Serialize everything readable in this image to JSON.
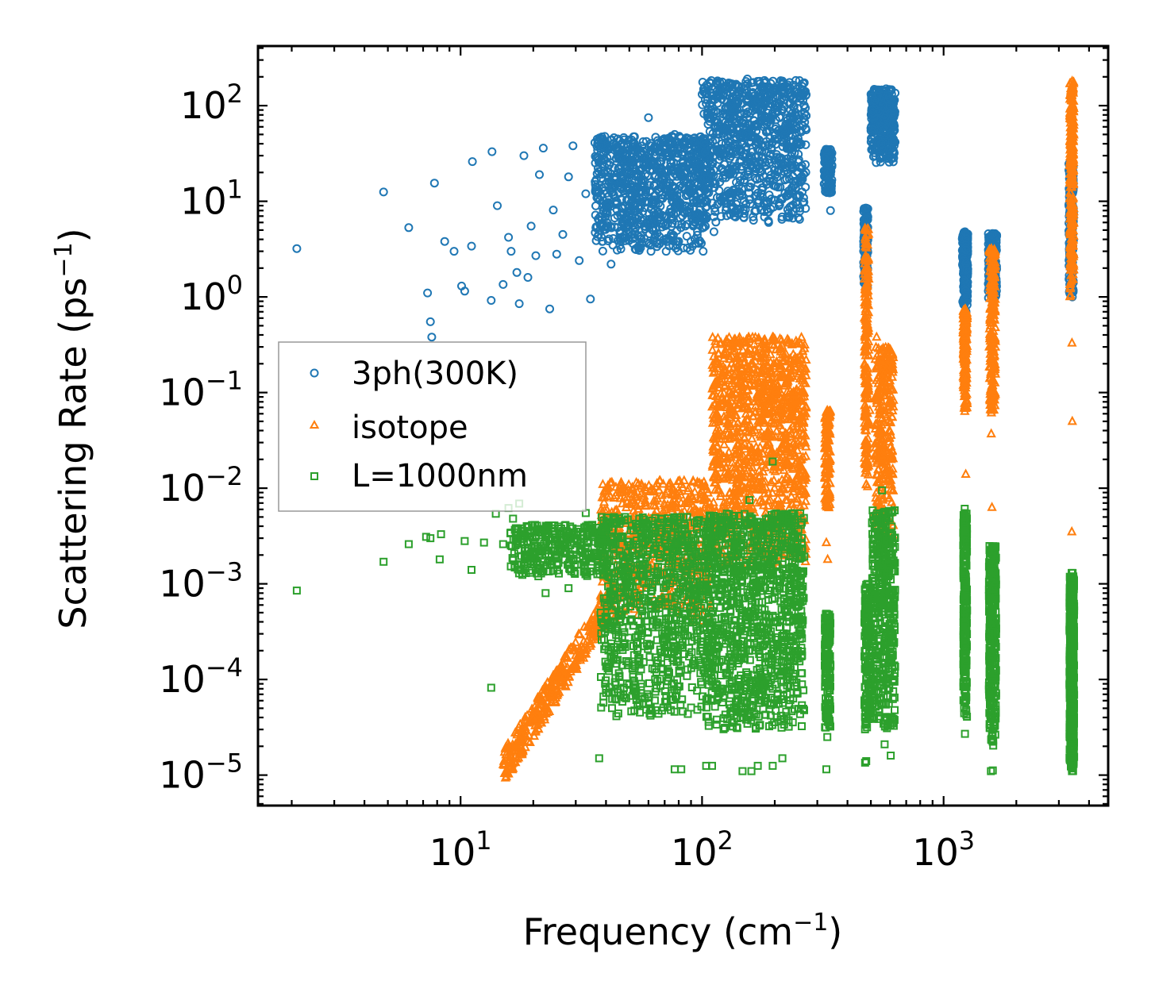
{
  "chart_data": {
    "type": "scatter",
    "xscale": "log",
    "yscale": "log",
    "xlabel": "Frequency (cm",
    "xlabel_exp": "−1",
    "xlabel_close": ")",
    "ylabel": "Scattering Rate (ps",
    "ylabel_exp": "−1",
    "ylabel_close": ")",
    "xlim": [
      1.45,
      4800
    ],
    "ylim": [
      4.8e-06,
      420
    ],
    "xticks": [
      {
        "value": 10,
        "base": "10",
        "exp": "1"
      },
      {
        "value": 100,
        "base": "10",
        "exp": "2"
      },
      {
        "value": 1000,
        "base": "10",
        "exp": "3"
      }
    ],
    "yticks": [
      {
        "value": 1e-05,
        "base": "10",
        "exp": "−5"
      },
      {
        "value": 0.0001,
        "base": "10",
        "exp": "−4"
      },
      {
        "value": 0.001,
        "base": "10",
        "exp": "−3"
      },
      {
        "value": 0.01,
        "base": "10",
        "exp": "−2"
      },
      {
        "value": 0.1,
        "base": "10",
        "exp": "−1"
      },
      {
        "value": 1,
        "base": "10",
        "exp": "0"
      },
      {
        "value": 10,
        "base": "10",
        "exp": "1"
      },
      {
        "value": 100,
        "base": "10",
        "exp": "2"
      }
    ],
    "legend_position": "center-left",
    "series": [
      {
        "name": "3ph(300K)",
        "marker": "circle",
        "color": "#1f77b4",
        "points": [
          [
            2.1,
            3.2
          ],
          [
            4.8,
            12.5
          ],
          [
            6.1,
            5.3
          ],
          [
            7.3,
            1.1
          ],
          [
            7.5,
            0.55
          ],
          [
            7.6,
            0.38
          ],
          [
            7.8,
            15.5
          ],
          [
            8.6,
            3.8
          ],
          [
            9.4,
            3.0
          ],
          [
            10.1,
            1.3
          ],
          [
            10.4,
            1.15
          ],
          [
            11.1,
            3.4
          ],
          [
            11.2,
            26
          ],
          [
            13.4,
            0.92
          ],
          [
            13.5,
            33
          ],
          [
            14.2,
            9.0
          ],
          [
            15.0,
            1.35
          ],
          [
            15.8,
            4.2
          ],
          [
            16.2,
            3.0
          ],
          [
            17.1,
            1.8
          ],
          [
            17.5,
            0.85
          ],
          [
            18.3,
            30
          ],
          [
            19.0,
            1.6
          ],
          [
            19.6,
            5.5
          ],
          [
            20.5,
            2.7
          ],
          [
            21.2,
            19
          ],
          [
            22.0,
            36
          ],
          [
            23.4,
            0.75
          ],
          [
            24.2,
            8.1
          ],
          [
            25.0,
            2.8
          ],
          [
            26.5,
            4.5
          ],
          [
            28.0,
            18
          ],
          [
            29.2,
            38
          ],
          [
            31.0,
            2.4
          ],
          [
            33.0,
            12
          ],
          [
            34.5,
            0.95
          ],
          [
            36.0,
            41
          ],
          [
            39.0,
            8.0
          ],
          [
            42.0,
            2.2
          ],
          [
            45.0,
            22
          ],
          [
            52.0,
            5.0
          ],
          [
            57.0,
            42
          ],
          [
            60.0,
            75
          ],
          [
            66.0,
            9.5
          ],
          [
            71.0,
            3.0
          ],
          [
            77.0,
            50
          ],
          [
            84.0,
            16
          ],
          [
            92.0,
            5.5
          ],
          [
            101.0,
            3.0
          ],
          [
            104.0,
            105
          ],
          [
            112.0,
            4.8
          ],
          [
            121.0,
            40
          ],
          [
            133.0,
            12
          ],
          [
            142.0,
            130
          ],
          [
            154.0,
            190
          ],
          [
            168.0,
            22
          ],
          [
            181.0,
            7.8
          ],
          [
            197.0,
            150
          ],
          [
            214.0,
            120
          ],
          [
            236.0,
            13
          ],
          [
            255.0,
            55
          ],
          [
            331.0,
            20
          ],
          [
            340.0,
            8.0
          ],
          [
            553.0,
            40
          ],
          [
            578.0,
            150
          ],
          [
            590.0,
            28
          ],
          [
            476.0,
            8.5
          ],
          [
            475.0,
            1.2
          ],
          [
            1226.0,
            4.8
          ],
          [
            1239.0,
            0.7
          ],
          [
            1593.0,
            4.6
          ],
          [
            3397.0,
            90
          ],
          [
            3412.0,
            1.0
          ]
        ],
        "bands": [
          {
            "xmin": 36,
            "xmax": 105,
            "ymin": 3,
            "ymax": 48,
            "count": 900
          },
          {
            "xmin": 100,
            "xmax": 270,
            "ymin": 6,
            "ymax": 185,
            "count": 900
          },
          {
            "xmin": 320,
            "xmax": 345,
            "ymin": 12,
            "ymax": 35,
            "count": 120
          },
          {
            "xmin": 500,
            "xmax": 630,
            "ymin": 25,
            "ymax": 150,
            "count": 300
          },
          {
            "xmin": 466,
            "xmax": 486,
            "ymin": 1.2,
            "ymax": 8.5,
            "count": 120
          },
          {
            "xmin": 1195,
            "xmax": 1260,
            "ymin": 0.8,
            "ymax": 4.8,
            "count": 200
          },
          {
            "xmin": 1530,
            "xmax": 1660,
            "ymin": 0.9,
            "ymax": 4.6,
            "count": 200
          },
          {
            "xmin": 3300,
            "xmax": 3450,
            "ymin": 1.0,
            "ymax": 25,
            "count": 200
          }
        ]
      },
      {
        "name": "isotope",
        "marker": "triangle",
        "color": "#ff7f0e",
        "points": [
          [
            15.2,
            1.3e-05
          ],
          [
            16.0,
            1.6e-05
          ],
          [
            17.5,
            2.4e-05
          ],
          [
            19.0,
            3.5e-05
          ],
          [
            21.0,
            5e-05
          ],
          [
            24.0,
            7.5e-05
          ],
          [
            27.0,
            0.00011
          ],
          [
            31.0,
            0.00017
          ],
          [
            35.0,
            0.00026
          ],
          [
            38.5,
            0.00048
          ],
          [
            67.0,
            0.012
          ],
          [
            101.0,
            0.0055
          ],
          [
            118.0,
            0.04
          ],
          [
            157.0,
            0.12
          ],
          [
            196.0,
            0.38
          ],
          [
            215.0,
            0.25
          ],
          [
            235.0,
            0.15
          ],
          [
            258.0,
            0.02
          ],
          [
            330.0,
            0.065
          ],
          [
            327.0,
            0.0027
          ],
          [
            331.0,
            0.0018
          ],
          [
            495.0,
            0.065
          ],
          [
            470.0,
            0.6
          ],
          [
            528.0,
            0.38
          ],
          [
            565.0,
            0.28
          ],
          [
            600.0,
            0.0055
          ],
          [
            1228.0,
            0.75
          ],
          [
            1235.0,
            0.014
          ],
          [
            1577.0,
            3.2
          ],
          [
            1585.0,
            0.0063
          ],
          [
            1575.0,
            0.037
          ],
          [
            3405.0,
            180
          ],
          [
            3398.0,
            0.33
          ],
          [
            3410.0,
            0.05
          ],
          [
            3395.0,
            0.0035
          ]
        ],
        "bands": [
          {
            "xmin": 15,
            "xmax": 40,
            "ymin": 1.2e-05,
            "ymax": 0.00055,
            "trend": "diag",
            "count": 320
          },
          {
            "xmin": 38,
            "xmax": 110,
            "ymin": 0.0004,
            "ymax": 0.012,
            "count": 600
          },
          {
            "xmin": 110,
            "xmax": 270,
            "ymin": 0.0015,
            "ymax": 0.38,
            "count": 1200
          },
          {
            "xmin": 322,
            "xmax": 340,
            "ymin": 0.006,
            "ymax": 0.065,
            "count": 120
          },
          {
            "xmin": 470,
            "xmax": 490,
            "ymin": 0.01,
            "ymax": 5.5,
            "count": 200
          },
          {
            "xmin": 520,
            "xmax": 620,
            "ymin": 0.003,
            "ymax": 0.3,
            "count": 300
          },
          {
            "xmin": 1205,
            "xmax": 1250,
            "ymin": 0.06,
            "ymax": 0.75,
            "count": 180
          },
          {
            "xmin": 1545,
            "xmax": 1640,
            "ymin": 0.06,
            "ymax": 3.2,
            "count": 220
          },
          {
            "xmin": 3330,
            "xmax": 3460,
            "ymin": 1,
            "ymax": 180,
            "count": 300
          }
        ]
      },
      {
        "name": "L=1000nm",
        "marker": "square",
        "color": "#2ca02c",
        "points": [
          [
            2.1,
            0.00085
          ],
          [
            4.8,
            0.0017
          ],
          [
            6.1,
            0.0026
          ],
          [
            7.2,
            0.0031
          ],
          [
            7.5,
            0.003
          ],
          [
            8.3,
            0.0033
          ],
          [
            8.2,
            0.0018
          ],
          [
            10.4,
            0.0028
          ],
          [
            11.1,
            0.0014
          ],
          [
            12.5,
            0.0027
          ],
          [
            13.4,
            8.2e-05
          ],
          [
            14.0,
            0.0054
          ],
          [
            15.0,
            0.0026
          ],
          [
            15.8,
            0.0062
          ],
          [
            16.5,
            0.0048
          ],
          [
            17.5,
            0.0069
          ],
          [
            18.0,
            0.0038
          ],
          [
            20.0,
            0.0016
          ],
          [
            21.0,
            0.0012
          ],
          [
            22.5,
            0.0008
          ],
          [
            24.5,
            0.0022
          ],
          [
            28.0,
            0.0009
          ],
          [
            33.0,
            0.0055
          ],
          [
            37.5,
            1.5e-05
          ],
          [
            38.0,
            0.0005
          ],
          [
            52.0,
            8e-05
          ],
          [
            56.0,
            9e-05
          ],
          [
            77.0,
            1.15e-05
          ],
          [
            82.0,
            1.15e-05
          ],
          [
            104.0,
            1.25e-05
          ],
          [
            110.0,
            1.25e-05
          ],
          [
            147.0,
            1.1e-05
          ],
          [
            160.0,
            1.1e-05
          ],
          [
            170.0,
            1.25e-05
          ],
          [
            196.0,
            1.25e-05
          ],
          [
            215.0,
            1.5e-05
          ],
          [
            157.0,
            0.0075
          ],
          [
            196.0,
            0.019
          ],
          [
            236.0,
            0.00025
          ],
          [
            258.0,
            0.0003
          ],
          [
            327.0,
            1.15e-05
          ],
          [
            330.0,
            2.5e-05
          ],
          [
            473.0,
            1.35e-05
          ],
          [
            478.0,
            1.4e-05
          ],
          [
            556.0,
            0.0095
          ],
          [
            570.0,
            2.1e-05
          ],
          [
            604.0,
            1.6e-05
          ],
          [
            1223.0,
            0.0061
          ],
          [
            1226.0,
            2.7e-05
          ],
          [
            1570.0,
            1.1e-05
          ],
          [
            1598.0,
            1.12e-05
          ],
          [
            3390.0,
            0.0013
          ],
          [
            3420.0,
            0.0013
          ],
          [
            3400.0,
            1.1e-05
          ]
        ],
        "bands": [
          {
            "xmin": 16,
            "xmax": 40,
            "ymin": 0.0012,
            "ymax": 0.0042,
            "count": 320
          },
          {
            "xmin": 38,
            "xmax": 110,
            "ymin": 4e-05,
            "ymax": 0.005,
            "count": 900
          },
          {
            "xmin": 105,
            "xmax": 265,
            "ymin": 3e-05,
            "ymax": 0.0055,
            "count": 1100
          },
          {
            "xmin": 322,
            "xmax": 340,
            "ymin": 3e-05,
            "ymax": 0.0005,
            "count": 140
          },
          {
            "xmin": 470,
            "xmax": 500,
            "ymin": 3e-05,
            "ymax": 0.001,
            "count": 150
          },
          {
            "xmin": 505,
            "xmax": 630,
            "ymin": 3e-05,
            "ymax": 0.006,
            "count": 420
          },
          {
            "xmin": 1205,
            "xmax": 1250,
            "ymin": 4e-05,
            "ymax": 0.0055,
            "count": 260
          },
          {
            "xmin": 1540,
            "xmax": 1650,
            "ymin": 2e-05,
            "ymax": 0.0025,
            "count": 320
          },
          {
            "xmin": 3320,
            "xmax": 3470,
            "ymin": 1.1e-05,
            "ymax": 0.0012,
            "count": 520
          }
        ]
      }
    ]
  }
}
